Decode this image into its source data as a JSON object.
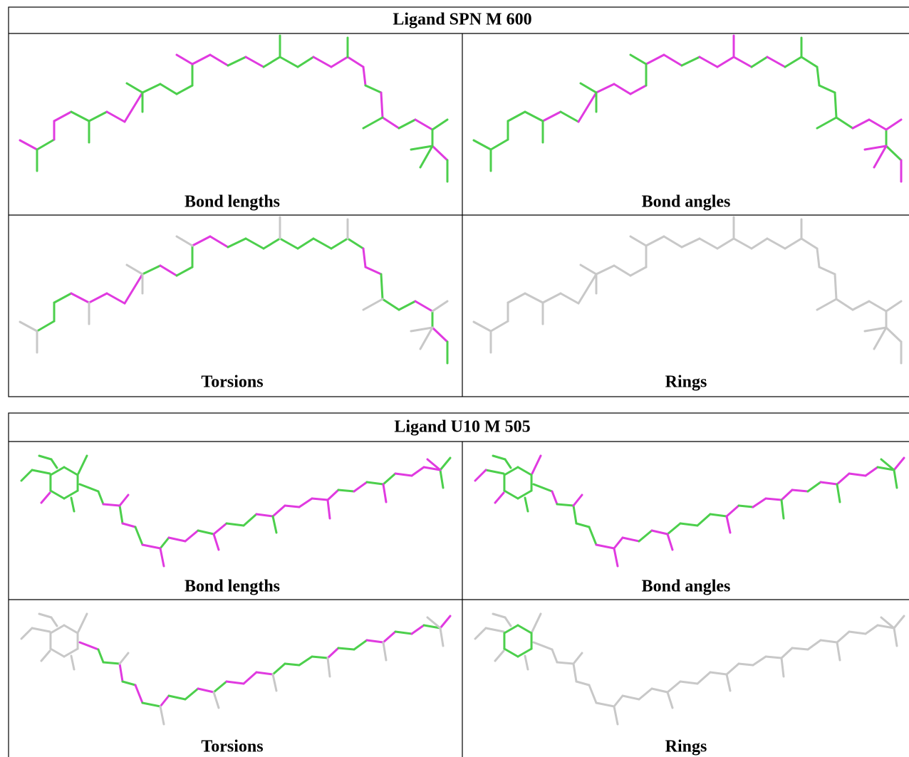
{
  "tables": [
    {
      "title": "Ligand SPN M 600",
      "panels": [
        "Bond lengths",
        "Bond angles",
        "Torsions",
        "Rings"
      ]
    },
    {
      "title": "Ligand U10 M 505",
      "panels": [
        "Bond lengths",
        "Bond angles",
        "Torsions",
        "Rings"
      ]
    }
  ]
}
